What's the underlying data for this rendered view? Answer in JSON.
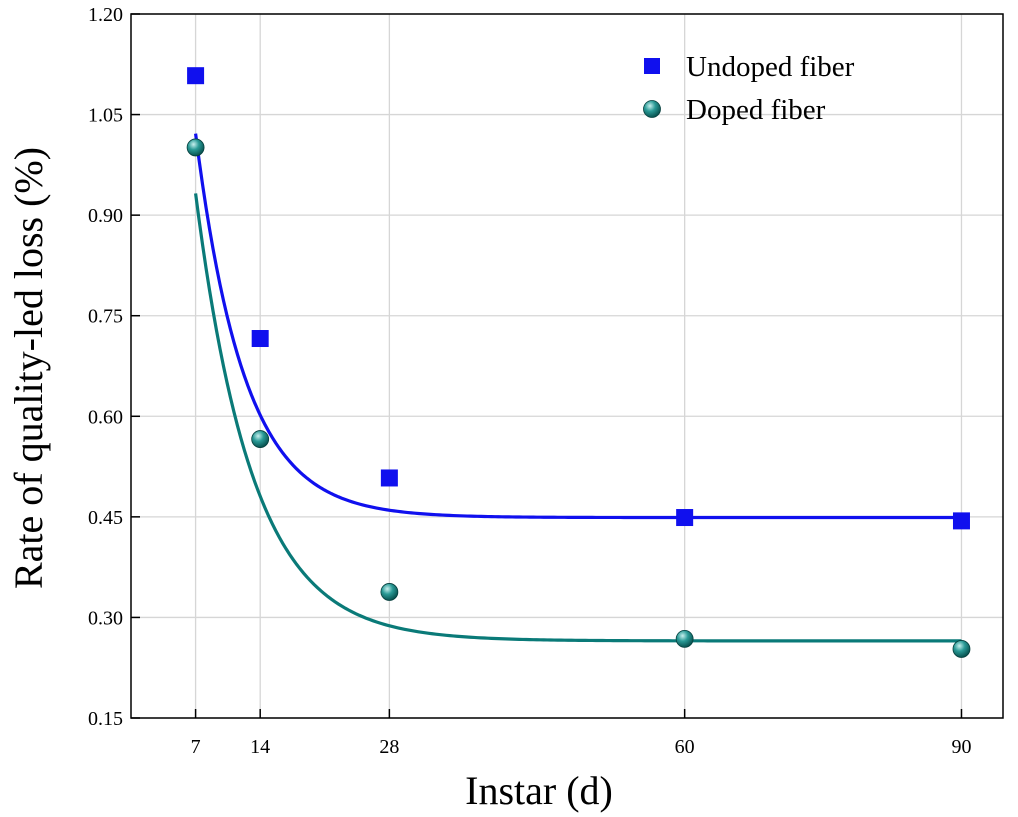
{
  "chart_data": {
    "type": "scatter",
    "title": "",
    "xlabel": "Instar (d)",
    "ylabel": "Rate of quality-led loss (%)",
    "xlim": [
      0,
      94.5
    ],
    "ylim": [
      0.15,
      1.2
    ],
    "x_ticks": [
      7,
      14,
      28,
      60,
      90
    ],
    "x_tick_labels": [
      "7",
      "14",
      "28",
      "60",
      "90"
    ],
    "y_ticks": [
      0.15,
      0.3,
      0.45,
      0.6,
      0.75,
      0.9,
      1.05,
      1.2
    ],
    "y_tick_labels": [
      "0.15",
      "0.30",
      "0.45",
      "0.60",
      "0.75",
      "0.90",
      "1.05",
      "1.20"
    ],
    "grid": true,
    "legend_position": "top-right",
    "series": [
      {
        "name": "Undoped fiber",
        "marker": "square",
        "color": "#1010ee",
        "x": [
          7,
          14,
          28,
          60,
          90
        ],
        "y": [
          1.108,
          0.716,
          0.508,
          0.449,
          0.444
        ],
        "fit": {
          "model": "exponential-decay",
          "y0": 0.449,
          "A": 2.145,
          "t": 5.3
        }
      },
      {
        "name": "Doped fiber",
        "marker": "sphere",
        "color": "#0a7a78",
        "x": [
          7,
          14,
          28,
          60,
          90
        ],
        "y": [
          1.001,
          0.566,
          0.338,
          0.268,
          0.253
        ],
        "fit": {
          "model": "exponential-decay",
          "y0": 0.265,
          "A": 2.064,
          "t": 6.2
        }
      }
    ]
  }
}
